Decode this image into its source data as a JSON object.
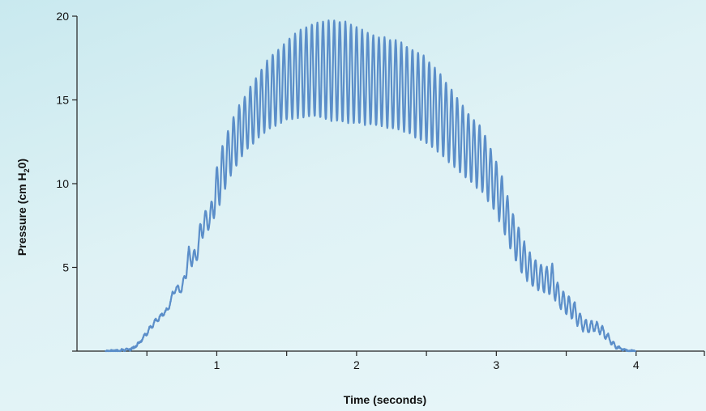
{
  "chart_data": {
    "type": "line",
    "title": "",
    "xlabel": "Time (seconds)",
    "ylabel": "Pressure (cm H",
    "ylabel_sub": "2",
    "ylabel_end": "0)",
    "xlim": [
      -0.0,
      4.5
    ],
    "ylim": [
      0,
      20
    ],
    "xticks": [
      1,
      2,
      3,
      4
    ],
    "xticks_minor": [
      0.5,
      1.5,
      2.5,
      3.5
    ],
    "yticks": [
      5,
      10,
      15,
      20
    ],
    "x_tick_labels": [
      "1",
      "2",
      "3",
      "4"
    ],
    "y_tick_labels": [
      "5",
      "10",
      "15",
      "20"
    ],
    "grid": false,
    "series": [
      {
        "color": "#5b8ec9",
        "x": [
          0.2,
          0.3,
          0.4,
          0.45,
          0.5,
          0.55,
          0.6,
          0.65,
          0.7,
          0.75,
          0.8,
          0.85,
          0.9,
          0.95,
          1.0,
          1.05,
          1.1,
          1.15,
          1.2,
          1.25,
          1.3,
          1.35,
          1.4,
          1.5,
          1.6,
          1.7,
          1.8,
          1.9,
          2.0,
          2.1,
          2.2,
          2.3,
          2.4,
          2.5,
          2.6,
          2.7,
          2.8,
          2.9,
          3.0,
          3.05,
          3.1,
          3.15,
          3.2,
          3.25,
          3.3,
          3.35,
          3.4,
          3.45,
          3.5,
          3.55,
          3.6,
          3.65,
          3.7,
          3.75,
          3.8,
          3.85,
          3.9,
          3.95,
          4.0
        ],
        "upper": [
          0.0,
          0.05,
          0.2,
          0.6,
          1.2,
          1.8,
          2.2,
          2.6,
          4.0,
          3.8,
          6.2,
          6.0,
          8.5,
          8.3,
          11.0,
          12.5,
          13.6,
          14.5,
          15.2,
          15.9,
          16.6,
          17.2,
          17.7,
          18.5,
          19.2,
          19.6,
          19.7,
          19.7,
          19.3,
          18.9,
          18.7,
          18.5,
          18.0,
          17.5,
          16.5,
          15.4,
          14.2,
          13.3,
          11.3,
          10.2,
          8.6,
          7.6,
          6.5,
          5.7,
          5.3,
          5.0,
          5.2,
          3.8,
          3.4,
          3.1,
          2.2,
          1.8,
          1.8,
          1.6,
          1.0,
          0.4,
          0.15,
          0.02,
          0.0
        ],
        "lower": [
          0.0,
          0.0,
          0.1,
          0.5,
          1.0,
          1.5,
          2.0,
          2.4,
          3.5,
          3.5,
          5.0,
          5.2,
          6.8,
          7.4,
          8.3,
          9.5,
          10.5,
          11.2,
          11.9,
          12.3,
          12.8,
          13.1,
          13.4,
          13.8,
          14.0,
          14.0,
          13.8,
          13.7,
          13.6,
          13.5,
          13.4,
          13.2,
          12.9,
          12.4,
          11.8,
          11.0,
          10.2,
          9.5,
          8.2,
          7.2,
          6.1,
          5.2,
          4.4,
          3.9,
          3.6,
          3.5,
          3.3,
          2.6,
          2.2,
          1.9,
          1.3,
          1.1,
          1.2,
          1.0,
          0.6,
          0.2,
          0.05,
          0.0,
          0.0
        ],
        "cycle_period_s": 0.04
      }
    ]
  }
}
